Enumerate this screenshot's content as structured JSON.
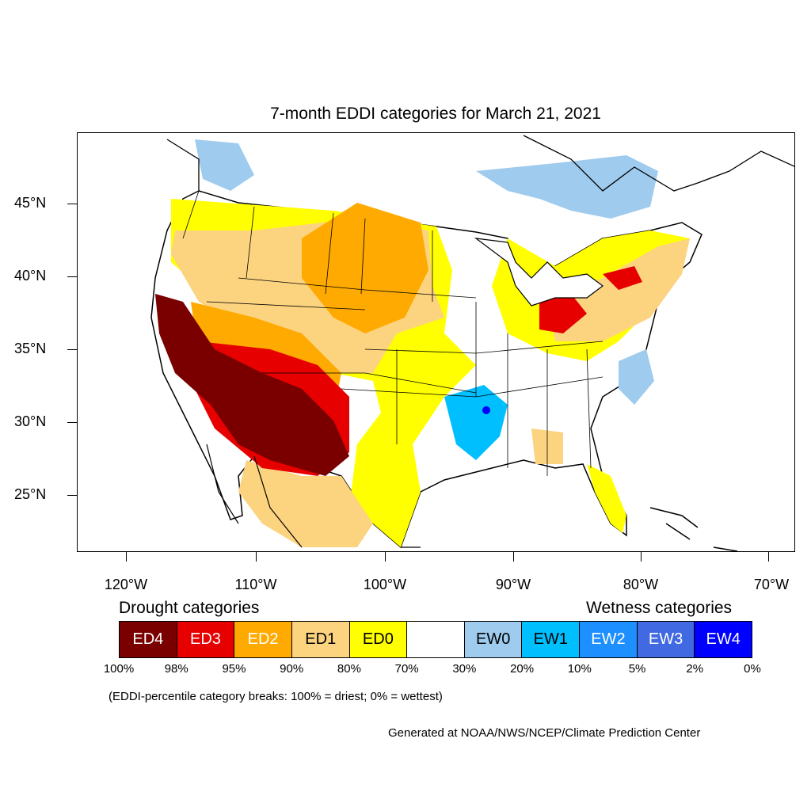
{
  "title": "7-month EDDI categories for March 21, 2021",
  "lat_labels": [
    "45°N",
    "40°N",
    "35°N",
    "30°N",
    "25°N"
  ],
  "lon_labels": [
    "120°W",
    "110°W",
    "100°W",
    "90°W",
    "80°W",
    "70°W"
  ],
  "legend": {
    "drought_heading": "Drought categories",
    "wetness_heading": "Wetness categories",
    "categories": [
      {
        "label": "ED4",
        "color": "#7a0000",
        "text_color": "#ffffff"
      },
      {
        "label": "ED3",
        "color": "#e60000",
        "text_color": "#ffffff"
      },
      {
        "label": "ED2",
        "color": "#ffaa00",
        "text_color": "#ffffff"
      },
      {
        "label": "ED1",
        "color": "#fcd37f",
        "text_color": "#000000"
      },
      {
        "label": "ED0",
        "color": "#ffff00",
        "text_color": "#000000"
      },
      {
        "label": "",
        "color": "#ffffff",
        "text_color": "#000000"
      },
      {
        "label": "EW0",
        "color": "#9ecbee",
        "text_color": "#000000"
      },
      {
        "label": "EW1",
        "color": "#00bfff",
        "text_color": "#000000"
      },
      {
        "label": "EW2",
        "color": "#1e8fff",
        "text_color": "#ffffff"
      },
      {
        "label": "EW3",
        "color": "#4169e1",
        "text_color": "#ffffff"
      },
      {
        "label": "EW4",
        "color": "#0000ff",
        "text_color": "#ffffff"
      }
    ],
    "percentiles": [
      "100%",
      "98%",
      "95%",
      "90%",
      "80%",
      "70%",
      "30%",
      "20%",
      "10%",
      "5%",
      "2%",
      "0%"
    ]
  },
  "note": "(EDDI-percentile category breaks: 100% = driest; 0% = wettest)",
  "credit": "Generated at NOAA/NWS/NCEP/Climate Prediction Center"
}
